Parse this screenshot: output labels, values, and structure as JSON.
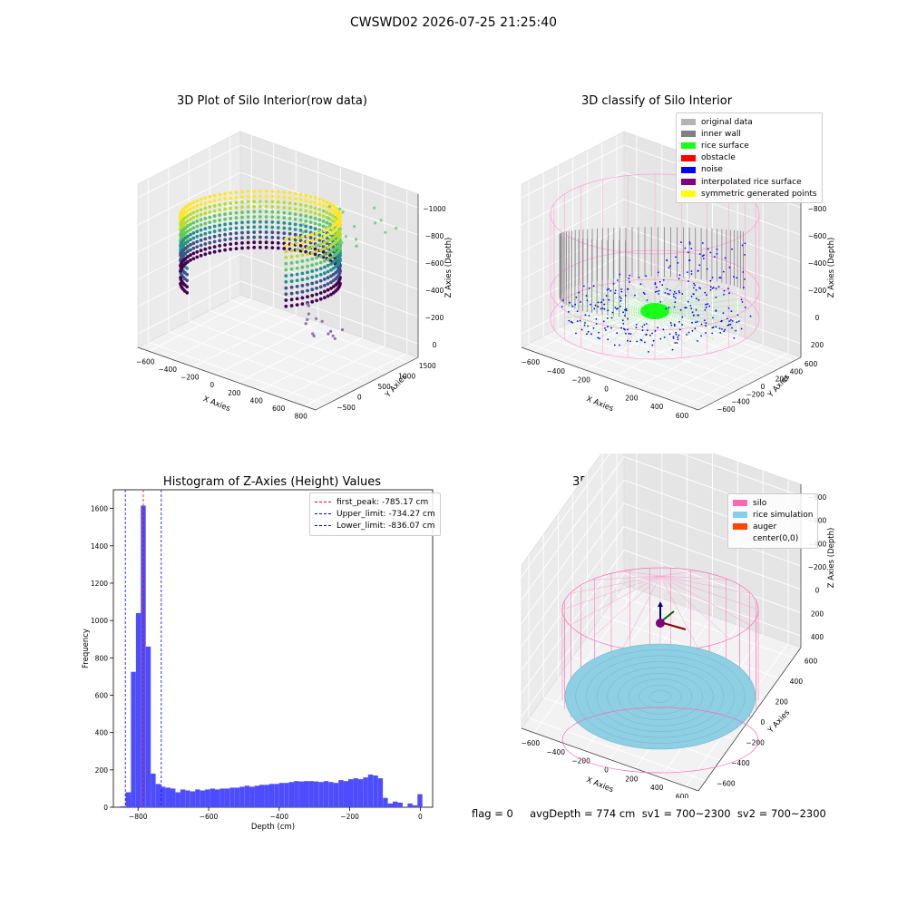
{
  "suptitle": "CWSWD02 2026-07-25 21:25:40",
  "footer": "flag = 0     avgDepth = 774 cm  sv1 = 700~2300  sv2 = 700~2300",
  "chart_data": [
    {
      "type": "scatter",
      "projection": "3d",
      "title": "3D Plot of Silo Interior(row data)",
      "xlabel": "X Axies",
      "ylabel": "Y Axies",
      "zlabel": "Z Axies (Depth)",
      "xticks": [
        "−600",
        "−400",
        "−200",
        "0",
        "200",
        "400",
        "600",
        "800"
      ],
      "yticks": [
        "−500",
        "0",
        "500",
        "1000",
        "1500"
      ],
      "zticks": [
        "−1000",
        "−800",
        "−600",
        "−400",
        "−200",
        "0"
      ],
      "colormap": "viridis"
    },
    {
      "type": "scatter",
      "projection": "3d",
      "title": "3D classify of Silo Interior",
      "xlabel": "X Axies",
      "ylabel": "Y Axies",
      "zlabel": "Z Axies (Depth)",
      "xticks": [
        "−600",
        "−400",
        "−200",
        "0",
        "200",
        "400",
        "600"
      ],
      "yticks": [
        "−600",
        "−400",
        "−200",
        "0",
        "200",
        "400",
        "600"
      ],
      "zticks": [
        "−800",
        "−600",
        "−400",
        "−200",
        "0",
        "200"
      ],
      "legend": [
        {
          "label": "original data",
          "color": "#b3b3b3"
        },
        {
          "label": "inner wall",
          "color": "#808080"
        },
        {
          "label": "rice surface",
          "color": "#1aff1a"
        },
        {
          "label": "obstacle",
          "color": "#ff0000"
        },
        {
          "label": "noise",
          "color": "#0000ff"
        },
        {
          "label": "interpolated rice surface",
          "color": "#800080"
        },
        {
          "label": "symmetric generated points",
          "color": "#ffff00"
        }
      ]
    },
    {
      "type": "bar",
      "title": "Histogram of Z-Axies (Height) Values",
      "xlabel": "Depth (cm)",
      "ylabel": "Frequency",
      "xlim": [
        -870,
        35
      ],
      "ylim": [
        0,
        1700
      ],
      "xticks": [
        -800,
        -600,
        -400,
        -200,
        0
      ],
      "yticks": [
        0,
        200,
        400,
        600,
        800,
        1000,
        1200,
        1400,
        1600
      ],
      "bar_color": "#4d4dff",
      "bins": [
        {
          "x0": -850,
          "x1": -835,
          "v": 5
        },
        {
          "x0": -835,
          "x1": -820,
          "v": 80
        },
        {
          "x0": -820,
          "x1": -806,
          "v": 725
        },
        {
          "x0": -806,
          "x1": -792,
          "v": 1040
        },
        {
          "x0": -792,
          "x1": -778,
          "v": 1615
        },
        {
          "x0": -778,
          "x1": -764,
          "v": 860
        },
        {
          "x0": -764,
          "x1": -750,
          "v": 180
        },
        {
          "x0": -750,
          "x1": -736,
          "v": 125
        },
        {
          "x0": -736,
          "x1": -722,
          "v": 110
        },
        {
          "x0": -722,
          "x1": -708,
          "v": 105
        },
        {
          "x0": -708,
          "x1": -694,
          "v": 100
        },
        {
          "x0": -694,
          "x1": -680,
          "v": 80
        },
        {
          "x0": -680,
          "x1": -666,
          "v": 95
        },
        {
          "x0": -666,
          "x1": -652,
          "v": 90
        },
        {
          "x0": -652,
          "x1": -638,
          "v": 85
        },
        {
          "x0": -638,
          "x1": -624,
          "v": 95
        },
        {
          "x0": -624,
          "x1": -610,
          "v": 90
        },
        {
          "x0": -610,
          "x1": -596,
          "v": 95
        },
        {
          "x0": -596,
          "x1": -582,
          "v": 100
        },
        {
          "x0": -582,
          "x1": -568,
          "v": 95
        },
        {
          "x0": -568,
          "x1": -554,
          "v": 100
        },
        {
          "x0": -554,
          "x1": -540,
          "v": 100
        },
        {
          "x0": -540,
          "x1": -526,
          "v": 105
        },
        {
          "x0": -526,
          "x1": -512,
          "v": 105
        },
        {
          "x0": -512,
          "x1": -498,
          "v": 110
        },
        {
          "x0": -498,
          "x1": -484,
          "v": 115
        },
        {
          "x0": -484,
          "x1": -470,
          "v": 110
        },
        {
          "x0": -470,
          "x1": -456,
          "v": 115
        },
        {
          "x0": -456,
          "x1": -442,
          "v": 120
        },
        {
          "x0": -442,
          "x1": -428,
          "v": 120
        },
        {
          "x0": -428,
          "x1": -414,
          "v": 125
        },
        {
          "x0": -414,
          "x1": -400,
          "v": 125
        },
        {
          "x0": -400,
          "x1": -386,
          "v": 130
        },
        {
          "x0": -386,
          "x1": -372,
          "v": 130
        },
        {
          "x0": -372,
          "x1": -358,
          "v": 135
        },
        {
          "x0": -358,
          "x1": -344,
          "v": 140
        },
        {
          "x0": -344,
          "x1": -330,
          "v": 138
        },
        {
          "x0": -330,
          "x1": -316,
          "v": 140
        },
        {
          "x0": -316,
          "x1": -302,
          "v": 140
        },
        {
          "x0": -302,
          "x1": -288,
          "v": 138
        },
        {
          "x0": -288,
          "x1": -274,
          "v": 135
        },
        {
          "x0": -274,
          "x1": -260,
          "v": 140
        },
        {
          "x0": -260,
          "x1": -246,
          "v": 135
        },
        {
          "x0": -246,
          "x1": -232,
          "v": 130
        },
        {
          "x0": -232,
          "x1": -218,
          "v": 145
        },
        {
          "x0": -218,
          "x1": -204,
          "v": 140
        },
        {
          "x0": -204,
          "x1": -190,
          "v": 150
        },
        {
          "x0": -190,
          "x1": -176,
          "v": 155
        },
        {
          "x0": -176,
          "x1": -162,
          "v": 150
        },
        {
          "x0": -162,
          "x1": -148,
          "v": 160
        },
        {
          "x0": -148,
          "x1": -134,
          "v": 175
        },
        {
          "x0": -134,
          "x1": -120,
          "v": 170
        },
        {
          "x0": -120,
          "x1": -106,
          "v": 155
        },
        {
          "x0": -106,
          "x1": -92,
          "v": 50
        },
        {
          "x0": -92,
          "x1": -78,
          "v": 20
        },
        {
          "x0": -78,
          "x1": -64,
          "v": 30
        },
        {
          "x0": -64,
          "x1": -50,
          "v": 25
        },
        {
          "x0": -50,
          "x1": -36,
          "v": 0
        },
        {
          "x0": -36,
          "x1": -22,
          "v": 20
        },
        {
          "x0": -22,
          "x1": -8,
          "v": 10
        },
        {
          "x0": -8,
          "x1": 6,
          "v": 70
        }
      ],
      "vlines": [
        {
          "label": "first_peak: -785.17 cm",
          "x": -785.17,
          "color": "#ff0000"
        },
        {
          "label": "Upper_limit: -734.27 cm",
          "x": -734.27,
          "color": "#0000ff"
        },
        {
          "label": "Lower_limit: -836.07 cm",
          "x": -836.07,
          "color": "#0000ff"
        }
      ],
      "legend_position": "upper right"
    },
    {
      "type": "scatter",
      "projection": "3d",
      "title": "3D simulation of Silo Interior",
      "xlabel": "X Axies",
      "ylabel": "Y Axies",
      "zlabel": "Z Axies (Depth)",
      "xticks": [
        "−600",
        "−400",
        "−200",
        "0",
        "200",
        "400",
        "600"
      ],
      "yticks": [
        "−600",
        "−400",
        "−200",
        "0",
        "200",
        "400",
        "600"
      ],
      "zticks": [
        "−800",
        "−600",
        "−400",
        "−200",
        "0",
        "200",
        "400"
      ],
      "legend": [
        {
          "label": "silo",
          "color": "#ff69b4"
        },
        {
          "label": "rice simulation",
          "color": "#87ceeb"
        },
        {
          "label": "auger",
          "color": "#ff4500"
        },
        {
          "label": "center(0,0)",
          "color": ""
        }
      ]
    }
  ]
}
